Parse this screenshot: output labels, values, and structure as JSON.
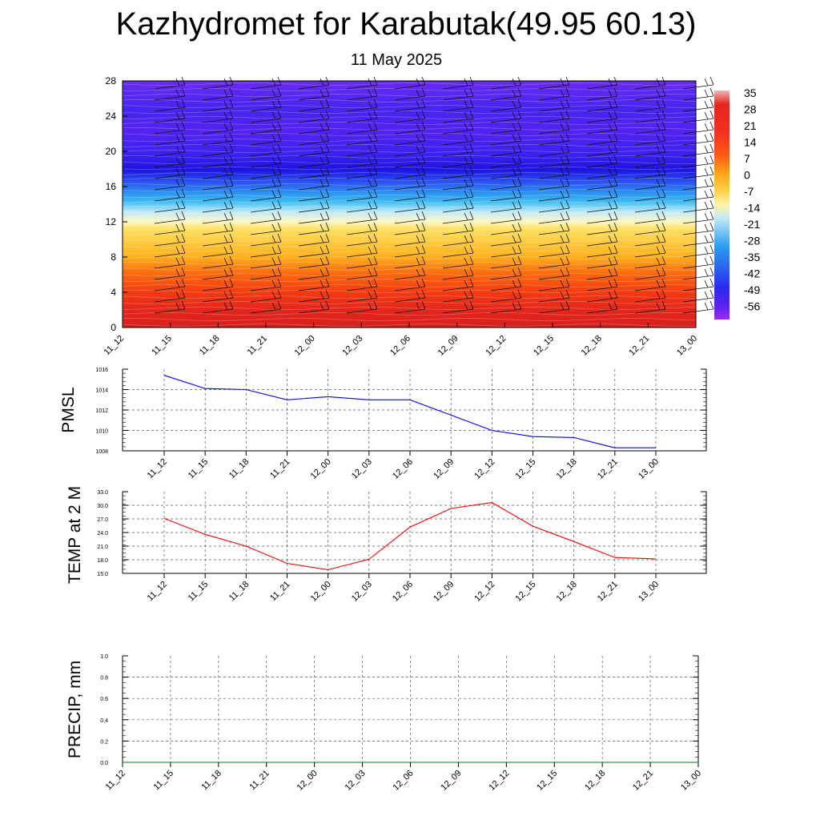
{
  "title": "Kazhydromet for Karabutak(49.95 60.13)",
  "subtitle": "11 May 2025",
  "chart_data": [
    {
      "type": "heatmap",
      "name": "temperature-cross-section",
      "ylabel": "",
      "y_ticks": [
        "0",
        "4",
        "8",
        "12",
        "16",
        "20",
        "24",
        "28"
      ],
      "ylim": [
        0,
        28
      ],
      "x_ticks": [
        "11_12",
        "11_15",
        "11_18",
        "11_21",
        "12_00",
        "12_03",
        "12_06",
        "12_09",
        "12_12",
        "12_15",
        "12_18",
        "12_21",
        "13_00"
      ],
      "colorbar_labels": [
        "35",
        "28",
        "21",
        "14",
        "7",
        "0",
        "-7",
        "-14",
        "-21",
        "-28",
        "-35",
        "-42",
        "-49",
        "-56"
      ],
      "colorscale": [
        "#f3b7b7",
        "#e32a22",
        "#f23c12",
        "#fd7e12",
        "#ffc030",
        "#fff0a0",
        "#a8e0f5",
        "#39b6f1",
        "#2a78ef",
        "#2a3cf0",
        "#3320e8",
        "#6a25f2",
        "#9a2cf0"
      ],
      "level_temperatures": [
        {
          "height": 0,
          "temp": 28
        },
        {
          "height": 4,
          "temp": 22
        },
        {
          "height": 8,
          "temp": 10
        },
        {
          "height": 12,
          "temp": -10
        },
        {
          "height": 14,
          "temp": -20
        },
        {
          "height": 16,
          "temp": -38
        },
        {
          "height": 18,
          "temp": -56
        },
        {
          "height": 20,
          "temp": -52
        },
        {
          "height": 24,
          "temp": -54
        },
        {
          "height": 28,
          "temp": -48
        }
      ],
      "wind_barbs": true
    },
    {
      "type": "line",
      "name": "pmsl",
      "ylabel": "PMSL",
      "x": [
        "11_12",
        "11_15",
        "11_18",
        "11_21",
        "12_00",
        "12_03",
        "12_06",
        "12_09",
        "12_12",
        "12_15",
        "12_18",
        "12_21",
        "13_00"
      ],
      "series": [
        {
          "values": [
            1015.4,
            1014.1,
            1014.0,
            1013.0,
            1013.3,
            1013.0,
            1013.0,
            1011.5,
            1010.0,
            1009.4,
            1009.3,
            1008.3,
            1008.3
          ],
          "color": "#0000ff"
        }
      ],
      "ylim": [
        1008,
        1016
      ],
      "y_ticks": [
        "1008",
        "1010",
        "1012",
        "1014",
        "1016"
      ],
      "grid": true
    },
    {
      "type": "line",
      "name": "temp-2m",
      "ylabel": "TEMP at 2 M",
      "x": [
        "11_12",
        "11_15",
        "11_18",
        "11_21",
        "12_00",
        "12_03",
        "12_06",
        "12_09",
        "12_12",
        "12_15",
        "12_18",
        "12_21",
        "13_00"
      ],
      "series": [
        {
          "values": [
            27.1,
            23.6,
            21.0,
            17.2,
            15.8,
            18.1,
            25.2,
            29.3,
            30.6,
            25.4,
            22.0,
            18.5,
            18.2
          ],
          "color": "#ff0000"
        }
      ],
      "ylim": [
        15,
        33
      ],
      "y_ticks": [
        "15.0",
        "18.0",
        "21.0",
        "24.0",
        "27.0",
        "30.0",
        "33.0"
      ],
      "grid": true
    },
    {
      "type": "line",
      "name": "precip",
      "ylabel": "PRECIP, mm",
      "x": [
        "11_12",
        "11_15",
        "11_18",
        "11_21",
        "12_00",
        "12_03",
        "12_06",
        "12_09",
        "12_12",
        "12_15",
        "12_18",
        "12_21",
        "13_00"
      ],
      "series": [
        {
          "values": [
            0,
            0,
            0,
            0,
            0,
            0,
            0,
            0,
            0,
            0,
            0,
            0,
            0
          ],
          "color": "#008000"
        }
      ],
      "ylim": [
        0,
        1
      ],
      "y_ticks": [
        "0.0",
        "0.2",
        "0.4",
        "0.6",
        "0.8",
        "1.0"
      ],
      "grid": true
    }
  ]
}
